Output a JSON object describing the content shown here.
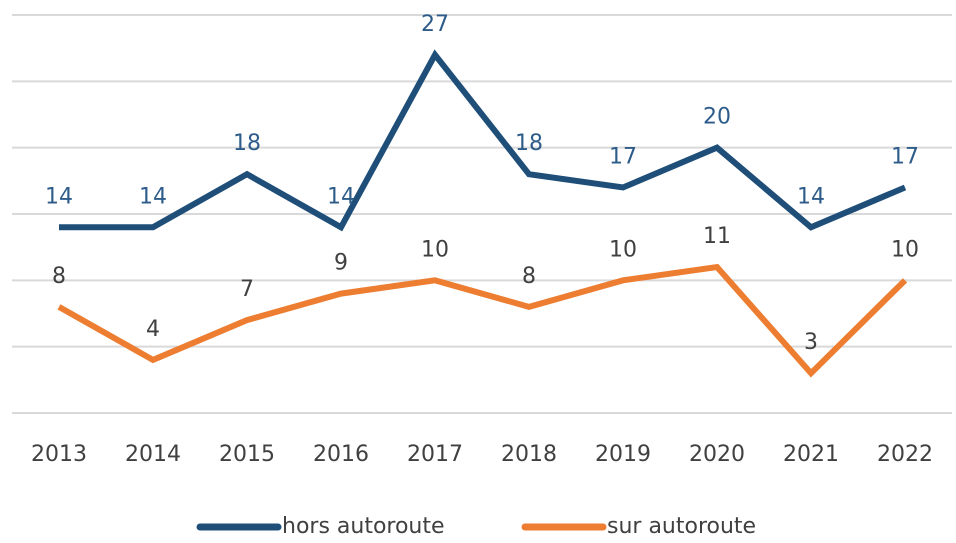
{
  "chart_data": {
    "type": "line",
    "categories": [
      "2013",
      "2014",
      "2015",
      "2016",
      "2017",
      "2018",
      "2019",
      "2020",
      "2021",
      "2022"
    ],
    "series": [
      {
        "name": "hors autoroute",
        "color": "#1f4e79",
        "values": [
          14,
          14,
          18,
          14,
          27,
          18,
          17,
          20,
          14,
          17
        ]
      },
      {
        "name": "sur autoroute",
        "color": "#ed7d31",
        "values": [
          8,
          4,
          7,
          9,
          10,
          8,
          10,
          11,
          3,
          10
        ]
      }
    ],
    "ylim": [
      0,
      30
    ],
    "yticks": [
      0,
      5,
      10,
      15,
      20,
      25,
      30
    ],
    "grid": true,
    "legend": "bottom"
  }
}
